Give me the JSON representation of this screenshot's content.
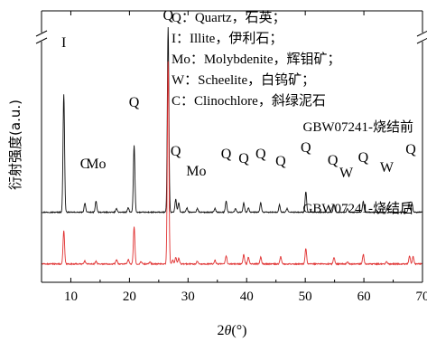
{
  "chart_data": {
    "type": "line",
    "xlabel": "2θ(°)",
    "xlabel_parts": {
      "prefix": "2",
      "theta": "θ",
      "suffix": "(°)"
    },
    "ylabel": "衍射强度(a.u.)",
    "xlim": [
      5,
      70
    ],
    "x_ticks": [
      10,
      20,
      30,
      40,
      50,
      60,
      70
    ],
    "y_ticks_shown": false,
    "y_axis_break": true,
    "legend_placement": "top-right",
    "legend": [
      {
        "key": "Q",
        "text": "Q：Quartz，石英；"
      },
      {
        "key": "I",
        "text": "I：Illite，伊利石；"
      },
      {
        "key": "Mo",
        "text": "Mo：Molybdenite，辉钼矿；"
      },
      {
        "key": "W",
        "text": "W：Scheelite，白钨矿；"
      },
      {
        "key": "C",
        "text": "C：Clinochlore，斜绿泥石"
      }
    ],
    "series": [
      {
        "name": "GBW07241-烧结前",
        "color": "#111111",
        "baseline": 0.2,
        "noise": 0.012,
        "peaks": [
          [
            8.8,
            3.2
          ],
          [
            12.4,
            0.25
          ],
          [
            14.3,
            0.3
          ],
          [
            17.8,
            0.1
          ],
          [
            19.8,
            0.12
          ],
          [
            20.8,
            1.8
          ],
          [
            26.6,
            5.0
          ],
          [
            27.9,
            0.35
          ],
          [
            28.4,
            0.25
          ],
          [
            29.8,
            0.12
          ],
          [
            31.6,
            0.1
          ],
          [
            34.6,
            0.1
          ],
          [
            36.5,
            0.3
          ],
          [
            38.1,
            0.1
          ],
          [
            39.5,
            0.25
          ],
          [
            40.3,
            0.12
          ],
          [
            42.4,
            0.25
          ],
          [
            45.6,
            0.2
          ],
          [
            46.9,
            0.1
          ],
          [
            50.1,
            0.55
          ],
          [
            54.9,
            0.2
          ],
          [
            57.2,
            0.1
          ],
          [
            59.9,
            0.3
          ],
          [
            64.0,
            0.12
          ],
          [
            67.7,
            0.22
          ],
          [
            68.2,
            0.25
          ]
        ]
      },
      {
        "name": "GBW07241-烧结后",
        "color": "#e03030",
        "baseline": -1.2,
        "noise": 0.015,
        "peaks": [
          [
            8.8,
            0.9
          ],
          [
            12.4,
            0.08
          ],
          [
            14.3,
            0.08
          ],
          [
            17.8,
            0.12
          ],
          [
            19.8,
            0.12
          ],
          [
            20.8,
            1.0
          ],
          [
            22.0,
            0.06
          ],
          [
            23.5,
            0.06
          ],
          [
            26.6,
            5.5
          ],
          [
            27.4,
            0.1
          ],
          [
            27.9,
            0.18
          ],
          [
            28.4,
            0.15
          ],
          [
            31.6,
            0.08
          ],
          [
            34.6,
            0.1
          ],
          [
            36.5,
            0.22
          ],
          [
            39.5,
            0.25
          ],
          [
            40.3,
            0.18
          ],
          [
            42.4,
            0.18
          ],
          [
            45.8,
            0.2
          ],
          [
            50.1,
            0.42
          ],
          [
            54.9,
            0.18
          ],
          [
            57.2,
            0.06
          ],
          [
            59.9,
            0.26
          ],
          [
            63.9,
            0.06
          ],
          [
            67.8,
            0.22
          ],
          [
            68.4,
            0.2
          ]
        ]
      }
    ],
    "annotations": [
      {
        "text": "I",
        "x": 8.8
      },
      {
        "text": "C",
        "x": 12.4
      },
      {
        "text": "Mo",
        "x": 14.3
      },
      {
        "text": "Q",
        "x": 20.8
      },
      {
        "text": "Q",
        "x": 26.6
      },
      {
        "text": "Q",
        "x": 27.9
      },
      {
        "text": "Mo",
        "x": 31.4
      },
      {
        "text": "Q",
        "x": 36.5
      },
      {
        "text": "Q",
        "x": 39.5
      },
      {
        "text": "Q",
        "x": 42.4
      },
      {
        "text": "Q",
        "x": 45.8
      },
      {
        "text": "Q",
        "x": 50.1
      },
      {
        "text": "Q",
        "x": 54.7
      },
      {
        "text": "W",
        "x": 57.0
      },
      {
        "text": "Q",
        "x": 59.9
      },
      {
        "text": "W",
        "x": 63.9
      },
      {
        "text": "Q",
        "x": 68.0
      }
    ],
    "series_labels": [
      {
        "text": "GBW07241-烧结前"
      },
      {
        "text": "GBW07241-烧结后"
      }
    ]
  }
}
